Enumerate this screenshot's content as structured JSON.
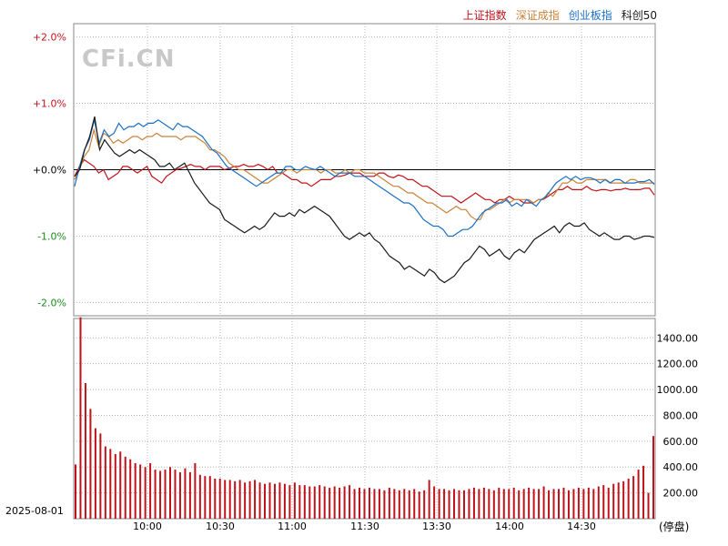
{
  "chart_data": [
    {
      "type": "line",
      "series": [
        {
          "name": "上证指数",
          "color": "#c0121a",
          "values": [
            -0.1,
            0.05,
            0.15,
            0.1,
            0.05,
            -0.05,
            0.0,
            -0.15,
            -0.1,
            -0.05,
            0.05,
            0.05,
            0.0,
            -0.05,
            0.0,
            0.05,
            -0.1,
            -0.15,
            -0.2,
            -0.1,
            -0.05,
            0.0,
            0.02,
            0.05,
            0.08,
            0.05,
            0.05,
            0.0,
            0.05,
            0.05,
            0.05,
            0.0,
            0.02,
            0.05,
            0.05,
            0.08,
            0.05,
            0.05,
            0.08,
            0.05,
            0.0,
            0.05,
            -0.05,
            -0.05,
            -0.1,
            -0.15,
            -0.15,
            -0.2,
            -0.2,
            -0.25,
            -0.2,
            -0.15,
            -0.15,
            -0.15,
            -0.1,
            -0.1,
            -0.08,
            -0.05,
            -0.05,
            -0.05,
            -0.1,
            -0.1,
            -0.1,
            -0.05,
            -0.05,
            -0.1,
            -0.12,
            -0.08,
            -0.1,
            -0.15,
            -0.15,
            -0.2,
            -0.25,
            -0.25,
            -0.3,
            -0.35,
            -0.4,
            -0.4,
            -0.4,
            -0.45,
            -0.5,
            -0.45,
            -0.4,
            -0.35,
            -0.4,
            -0.45,
            -0.45,
            -0.5,
            -0.45,
            -0.45,
            -0.4,
            -0.45,
            -0.45,
            -0.5,
            -0.5,
            -0.5,
            -0.45,
            -0.45,
            -0.4,
            -0.35,
            -0.3,
            -0.3,
            -0.25,
            -0.3,
            -0.3,
            -0.3,
            -0.25,
            -0.3,
            -0.32,
            -0.3,
            -0.3,
            -0.32,
            -0.3,
            -0.3,
            -0.28,
            -0.3,
            -0.3,
            -0.3,
            -0.28,
            -0.28,
            -0.38
          ]
        },
        {
          "name": "深证成指",
          "color": "#c8823a",
          "values": [
            -0.15,
            0.0,
            0.2,
            0.3,
            0.6,
            0.35,
            0.55,
            0.5,
            0.4,
            0.45,
            0.4,
            0.45,
            0.5,
            0.5,
            0.45,
            0.5,
            0.5,
            0.55,
            0.5,
            0.5,
            0.5,
            0.5,
            0.45,
            0.5,
            0.5,
            0.5,
            0.45,
            0.4,
            0.3,
            0.3,
            0.25,
            0.2,
            0.1,
            0.05,
            0.0,
            0.0,
            -0.05,
            -0.1,
            -0.15,
            -0.2,
            -0.2,
            -0.15,
            -0.1,
            -0.05,
            0.0,
            0.0,
            -0.05,
            0.0,
            0.0,
            0.0,
            0.0,
            -0.05,
            0.0,
            0.0,
            -0.05,
            -0.05,
            0.0,
            -0.05,
            0.0,
            0.0,
            -0.05,
            -0.05,
            -0.05,
            -0.1,
            -0.15,
            -0.2,
            -0.25,
            -0.25,
            -0.3,
            -0.35,
            -0.35,
            -0.4,
            -0.45,
            -0.5,
            -0.5,
            -0.55,
            -0.6,
            -0.65,
            -0.6,
            -0.55,
            -0.6,
            -0.6,
            -0.7,
            -0.75,
            -0.75,
            -0.6,
            -0.6,
            -0.55,
            -0.5,
            -0.45,
            -0.5,
            -0.45,
            -0.45,
            -0.45,
            -0.45,
            -0.5,
            -0.45,
            -0.45,
            -0.35,
            -0.4,
            -0.3,
            -0.2,
            -0.2,
            -0.15,
            -0.2,
            -0.2,
            -0.15,
            -0.15,
            -0.15,
            -0.15,
            -0.15,
            -0.2,
            -0.2,
            -0.2,
            -0.2,
            -0.15,
            -0.15,
            -0.2,
            -0.2,
            -0.2,
            -0.2
          ]
        },
        {
          "name": "创业板指",
          "color": "#1a6fc4",
          "values": [
            -0.25,
            0.05,
            0.3,
            0.45,
            0.75,
            0.4,
            0.6,
            0.5,
            0.55,
            0.7,
            0.6,
            0.65,
            0.65,
            0.7,
            0.65,
            0.7,
            0.7,
            0.75,
            0.7,
            0.65,
            0.6,
            0.7,
            0.65,
            0.65,
            0.6,
            0.55,
            0.5,
            0.4,
            0.3,
            0.25,
            0.15,
            0.05,
            0.0,
            -0.05,
            -0.1,
            -0.15,
            -0.2,
            -0.25,
            -0.2,
            -0.15,
            -0.1,
            -0.05,
            -0.05,
            0.05,
            0.05,
            0.0,
            0.0,
            0.05,
            0.02,
            0.0,
            0.05,
            0.0,
            -0.05,
            -0.1,
            -0.05,
            -0.05,
            -0.05,
            -0.1,
            -0.1,
            -0.1,
            -0.15,
            -0.2,
            -0.25,
            -0.3,
            -0.35,
            -0.4,
            -0.45,
            -0.5,
            -0.5,
            -0.55,
            -0.65,
            -0.75,
            -0.8,
            -0.85,
            -0.85,
            -0.9,
            -1.0,
            -1.0,
            -0.95,
            -0.9,
            -0.9,
            -0.85,
            -0.75,
            -0.65,
            -0.6,
            -0.55,
            -0.5,
            -0.5,
            -0.45,
            -0.55,
            -0.5,
            -0.55,
            -0.45,
            -0.5,
            -0.55,
            -0.45,
            -0.4,
            -0.3,
            -0.2,
            -0.15,
            -0.1,
            -0.15,
            -0.1,
            -0.15,
            -0.12,
            -0.12,
            -0.15,
            -0.2,
            -0.15,
            -0.2,
            -0.15,
            -0.15,
            -0.2,
            -0.2,
            -0.2,
            -0.18,
            -0.18,
            -0.15,
            -0.22
          ]
        },
        {
          "name": "科创50",
          "color": "#1a1a1a",
          "values": [
            -0.1,
            0.0,
            0.3,
            0.5,
            0.8,
            0.3,
            0.45,
            0.35,
            0.25,
            0.2,
            0.25,
            0.3,
            0.25,
            0.3,
            0.25,
            0.2,
            0.15,
            0.05,
            0.05,
            0.1,
            0.0,
            0.05,
            0.1,
            -0.05,
            -0.2,
            -0.3,
            -0.4,
            -0.5,
            -0.55,
            -0.6,
            -0.75,
            -0.8,
            -0.85,
            -0.9,
            -0.95,
            -0.9,
            -0.85,
            -0.9,
            -0.85,
            -0.75,
            -0.65,
            -0.7,
            -0.7,
            -0.65,
            -0.7,
            -0.6,
            -0.65,
            -0.6,
            -0.55,
            -0.6,
            -0.65,
            -0.7,
            -0.8,
            -0.9,
            -1.0,
            -1.05,
            -1.0,
            -0.95,
            -1.0,
            -0.95,
            -1.05,
            -1.1,
            -1.2,
            -1.3,
            -1.35,
            -1.4,
            -1.5,
            -1.45,
            -1.5,
            -1.55,
            -1.6,
            -1.5,
            -1.55,
            -1.65,
            -1.7,
            -1.65,
            -1.6,
            -1.5,
            -1.4,
            -1.35,
            -1.25,
            -1.15,
            -1.2,
            -1.3,
            -1.25,
            -1.2,
            -1.3,
            -1.35,
            -1.25,
            -1.2,
            -1.25,
            -1.15,
            -1.05,
            -1.0,
            -0.95,
            -0.9,
            -0.85,
            -0.95,
            -0.85,
            -0.8,
            -0.85,
            -0.85,
            -0.8,
            -0.9,
            -0.95,
            -1.0,
            -0.95,
            -1.0,
            -1.05,
            -1.05,
            -1.0,
            -1.0,
            -1.05,
            -1.03,
            -1.0,
            -1.0,
            -1.02
          ]
        }
      ],
      "yticks": [
        {
          "value": 2.0,
          "label": "+2.0%",
          "color": "#c0121a"
        },
        {
          "value": 1.0,
          "label": "+1.0%",
          "color": "#c0121a"
        },
        {
          "value": 0.0,
          "label": "+0.0%",
          "color": "#000000"
        },
        {
          "value": -1.0,
          "label": "-1.0%",
          "color": "#1a8a1a"
        },
        {
          "value": -2.0,
          "label": "-2.0%",
          "color": "#1a8a1a"
        }
      ],
      "ylim": [
        -2.2,
        2.2
      ],
      "grid": true,
      "legend": "top-right"
    },
    {
      "type": "bar",
      "color": "#c0121a",
      "values": [
        420,
        1560,
        1050,
        850,
        700,
        660,
        560,
        540,
        500,
        520,
        480,
        460,
        430,
        420,
        400,
        430,
        380,
        370,
        380,
        400,
        380,
        360,
        390,
        360,
        430,
        340,
        330,
        330,
        310,
        310,
        300,
        300,
        290,
        300,
        280,
        290,
        300,
        280,
        270,
        280,
        270,
        280,
        270,
        260,
        280,
        260,
        260,
        250,
        250,
        260,
        250,
        240,
        250,
        240,
        250,
        260,
        230,
        240,
        230,
        240,
        230,
        230,
        220,
        240,
        230,
        220,
        230,
        220,
        230,
        210,
        220,
        300,
        250,
        230,
        230,
        220,
        230,
        220,
        220,
        230,
        240,
        230,
        240,
        230,
        220,
        240,
        230,
        230,
        240,
        220,
        230,
        240,
        230,
        230,
        250,
        220,
        230,
        230,
        240,
        220,
        230,
        240,
        230,
        240,
        230,
        250,
        260,
        240,
        270,
        280,
        290,
        310,
        330,
        380,
        410,
        200,
        640
      ],
      "yticks": [
        {
          "value": 200,
          "label": "200.00"
        },
        {
          "value": 400,
          "label": "400.00"
        },
        {
          "value": 600,
          "label": "600.00"
        },
        {
          "value": 800,
          "label": "800.00"
        },
        {
          "value": 1000,
          "label": "1000.00"
        },
        {
          "value": 1200,
          "label": "1200.00"
        },
        {
          "value": 1400,
          "label": "1400.00"
        }
      ],
      "ylim": [
        0,
        1550
      ],
      "grid": true
    }
  ],
  "x_axis": {
    "labels": [
      "10:00",
      "10:30",
      "11:00",
      "11:30",
      "13:30",
      "14:00",
      "14:30"
    ]
  },
  "watermark": "CFi.CN",
  "date": "2025-08-01",
  "status": "(停盘)"
}
